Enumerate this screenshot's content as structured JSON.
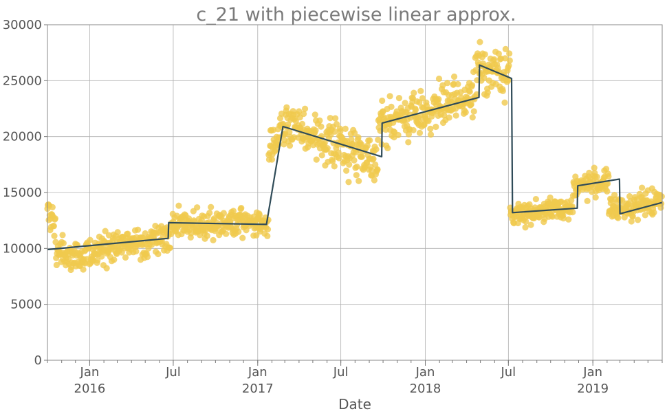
{
  "chart_data": {
    "type": "scatter",
    "title": "c_21 with piecewise linear approx.",
    "xlabel": "Date",
    "ylabel": "",
    "ylim": [
      0,
      30000
    ],
    "xlim": [
      "2015-10-01",
      "2019-06-01"
    ],
    "grid": true,
    "y_ticks": [
      "0",
      "5000",
      "10000",
      "15000",
      "20000",
      "25000",
      "30000"
    ],
    "x_ticks": [
      {
        "date": "2016-01-01",
        "label": "Jan",
        "year": "2016"
      },
      {
        "date": "2016-07-01",
        "label": "Jul",
        "year": ""
      },
      {
        "date": "2017-01-01",
        "label": "Jan",
        "year": "2017"
      },
      {
        "date": "2017-07-01",
        "label": "Jul",
        "year": ""
      },
      {
        "date": "2018-01-01",
        "label": "Jan",
        "year": "2018"
      },
      {
        "date": "2018-07-01",
        "label": "Jul",
        "year": ""
      },
      {
        "date": "2019-01-01",
        "label": "Jan",
        "year": "2019"
      }
    ],
    "colors": {
      "scatter": "#f0c94e",
      "line": "#2f4b58"
    },
    "scatter_segments": [
      {
        "x0": "2015-10-01",
        "x1": "2015-10-20",
        "y0": 13200,
        "y1": 12000,
        "spread": 1400
      },
      {
        "x0": "2015-10-20",
        "x1": "2015-11-25",
        "y0": 9800,
        "y1": 9200,
        "spread": 1300
      },
      {
        "x0": "2015-11-25",
        "x1": "2016-06-25",
        "y0": 9400,
        "y1": 11000,
        "spread": 1100
      },
      {
        "x0": "2016-06-25",
        "x1": "2017-01-25",
        "y0": 12100,
        "y1": 12300,
        "spread": 1100
      },
      {
        "x0": "2017-01-25",
        "x1": "2017-02-28",
        "y0": 18500,
        "y1": 21000,
        "spread": 1400
      },
      {
        "x0": "2017-02-28",
        "x1": "2017-09-20",
        "y0": 21000,
        "y1": 18000,
        "spread": 1800
      },
      {
        "x0": "2017-09-20",
        "x1": "2018-04-20",
        "y0": 21000,
        "y1": 23500,
        "spread": 1700
      },
      {
        "x0": "2018-04-20",
        "x1": "2018-07-05",
        "y0": 26200,
        "y1": 25500,
        "spread": 1900
      },
      {
        "x0": "2018-07-05",
        "x1": "2018-11-20",
        "y0": 13000,
        "y1": 13700,
        "spread": 900
      },
      {
        "x0": "2018-11-20",
        "x1": "2019-02-05",
        "y0": 15600,
        "y1": 16000,
        "spread": 1000
      },
      {
        "x0": "2019-02-05",
        "x1": "2019-06-01",
        "y0": 13400,
        "y1": 14200,
        "spread": 1000
      }
    ],
    "line_points": [
      {
        "x": "2015-10-01",
        "y": 9900
      },
      {
        "x": "2016-06-20",
        "y": 10900
      },
      {
        "x": "2016-06-21",
        "y": 12300
      },
      {
        "x": "2017-01-20",
        "y": 12150
      },
      {
        "x": "2017-02-25",
        "y": 20900
      },
      {
        "x": "2017-09-28",
        "y": 18200
      },
      {
        "x": "2017-09-29",
        "y": 21200
      },
      {
        "x": "2018-04-28",
        "y": 23500
      },
      {
        "x": "2018-04-29",
        "y": 26400
      },
      {
        "x": "2018-07-08",
        "y": 25200
      },
      {
        "x": "2018-07-10",
        "y": 13200
      },
      {
        "x": "2018-11-28",
        "y": 13600
      },
      {
        "x": "2018-11-29",
        "y": 15600
      },
      {
        "x": "2019-02-28",
        "y": 16200
      },
      {
        "x": "2019-03-01",
        "y": 13100
      },
      {
        "x": "2019-06-01",
        "y": 14100
      }
    ]
  }
}
